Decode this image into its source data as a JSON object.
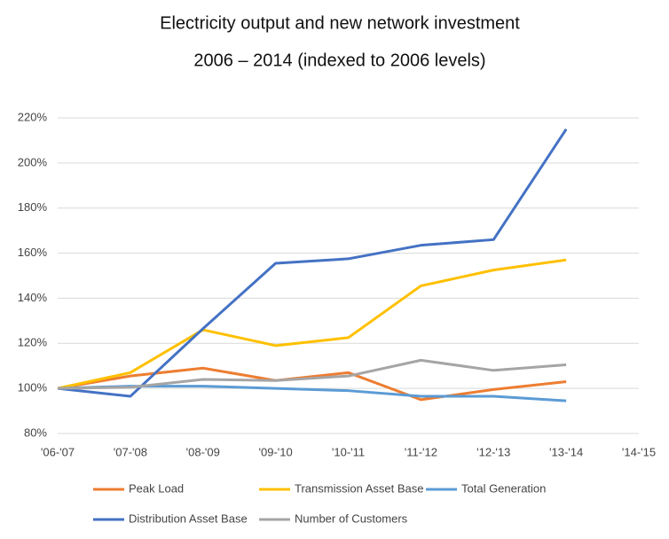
{
  "chart_data": {
    "type": "line",
    "title": "Electricity output and new network investment",
    "subtitle": "2006 – 2014 (indexed to 2006 levels)",
    "categories": [
      "'06-'07",
      "'07-'08",
      "'08-'09",
      "'09-'10",
      "'10-'11",
      "'11-'12",
      "'12-'13",
      "'13-'14",
      "'14-'15"
    ],
    "series": [
      {
        "name": "Peak Load",
        "color": "#ed7d31",
        "values": [
          100,
          105.5,
          109,
          103.5,
          107,
          95,
          99.5,
          103,
          null
        ]
      },
      {
        "name": "Transmission Asset Base",
        "color": "#ffc000",
        "values": [
          100,
          107,
          126,
          119,
          122.5,
          145.5,
          152.5,
          157,
          null
        ]
      },
      {
        "name": "Total Generation",
        "color": "#5b9bd5",
        "values": [
          100,
          101,
          101,
          100,
          99,
          96.5,
          96.5,
          94.5,
          null
        ]
      },
      {
        "name": "Distribution Asset Base",
        "color": "#4472c4",
        "values": [
          100,
          96.5,
          126.5,
          155.5,
          157.5,
          163.5,
          166,
          215,
          null
        ]
      },
      {
        "name": "Number of Customers",
        "color": "#a5a5a5",
        "values": [
          100,
          100.5,
          104,
          103.5,
          105.5,
          112.5,
          108,
          110.5,
          null
        ]
      }
    ],
    "ylim": [
      80,
      220
    ],
    "yticks": [
      {
        "value": 80,
        "label": "80%"
      },
      {
        "value": 100,
        "label": "100%"
      },
      {
        "value": 120,
        "label": "120%"
      },
      {
        "value": 140,
        "label": "140%"
      },
      {
        "value": 160,
        "label": "160%"
      },
      {
        "value": 180,
        "label": "180%"
      },
      {
        "value": 200,
        "label": "200%"
      },
      {
        "value": 220,
        "label": "220%"
      }
    ],
    "grid": true
  }
}
